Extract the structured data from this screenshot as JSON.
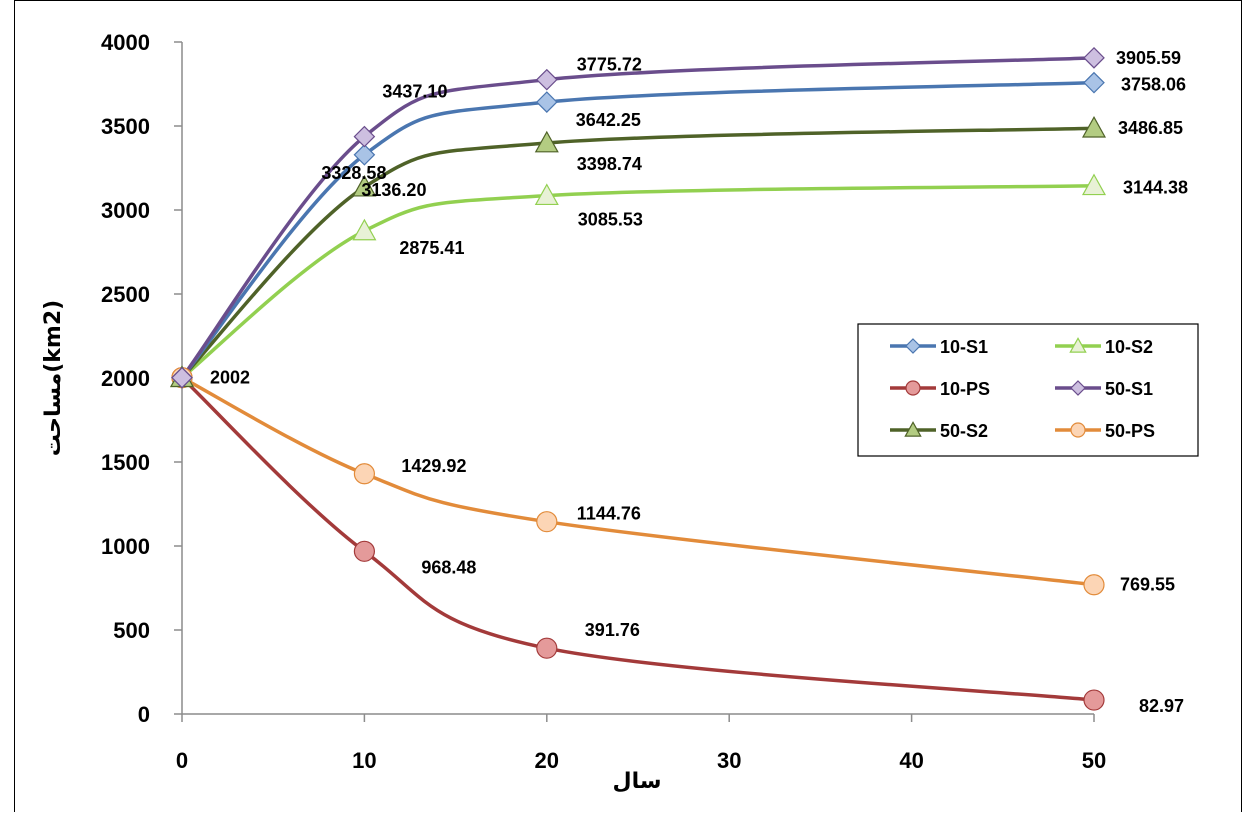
{
  "chart_data": {
    "type": "line",
    "x": [
      0,
      10,
      20,
      50
    ],
    "xlim": [
      0,
      50
    ],
    "ylim": [
      0,
      4000
    ],
    "x_ticks": [
      "0",
      "10",
      "20",
      "30",
      "40",
      "50"
    ],
    "y_ticks": [
      "0",
      "500",
      "1000",
      "1500",
      "2000",
      "2500",
      "3000",
      "3500",
      "4000"
    ],
    "xlabel": "سال",
    "ylabel": "مساحت(km2)",
    "grid": false,
    "legend_position": "right-middle",
    "series": [
      {
        "name": "10-S1",
        "values": [
          2002,
          3328.58,
          3642.25,
          3758.06
        ],
        "color": "#4a76b0",
        "marker": "diamond",
        "marker_fill": "#a9c3e6",
        "labels": [
          "",
          "3328.58",
          "3642.25",
          "3758.06"
        ]
      },
      {
        "name": "10-S2",
        "values": [
          2002,
          2875.41,
          3085.53,
          3144.38
        ],
        "color": "#92d050",
        "marker": "triangle",
        "marker_fill": "#e8f1d6",
        "labels": [
          "",
          "2875.41",
          "3085.53",
          "3144.38"
        ]
      },
      {
        "name": "10-PS",
        "values": [
          2002,
          968.48,
          391.76,
          82.97
        ],
        "color": "#a33a3a",
        "marker": "circle",
        "marker_fill": "#e49a9a",
        "labels": [
          "",
          "968.48",
          "391.76",
          "82.97"
        ]
      },
      {
        "name": "50-S1",
        "values": [
          2002,
          3437.1,
          3775.72,
          3905.59
        ],
        "color": "#6a4d8c",
        "marker": "diamond",
        "marker_fill": "#cdbfe0",
        "labels": [
          "",
          "3437.10",
          "3775.72",
          "3905.59"
        ]
      },
      {
        "name": "50-S2",
        "values": [
          2002,
          3136.2,
          3398.74,
          3486.85
        ],
        "color": "#4f6228",
        "marker": "triangle",
        "marker_fill": "#b3cc82",
        "labels": [
          "",
          "3136.20",
          "3398.74",
          "3486.85"
        ]
      },
      {
        "name": "50-PS",
        "values": [
          2002,
          1429.92,
          1144.76,
          769.55
        ],
        "color": "#e28b3a",
        "marker": "circle",
        "marker_fill": "#fcd5b5",
        "labels": [
          "2002",
          "1429.92",
          "1144.76",
          "769.55"
        ]
      }
    ],
    "legend_order": [
      "10-S1",
      "10-S2",
      "10-PS",
      "50-S1",
      "50-S2",
      "50-PS"
    ]
  }
}
